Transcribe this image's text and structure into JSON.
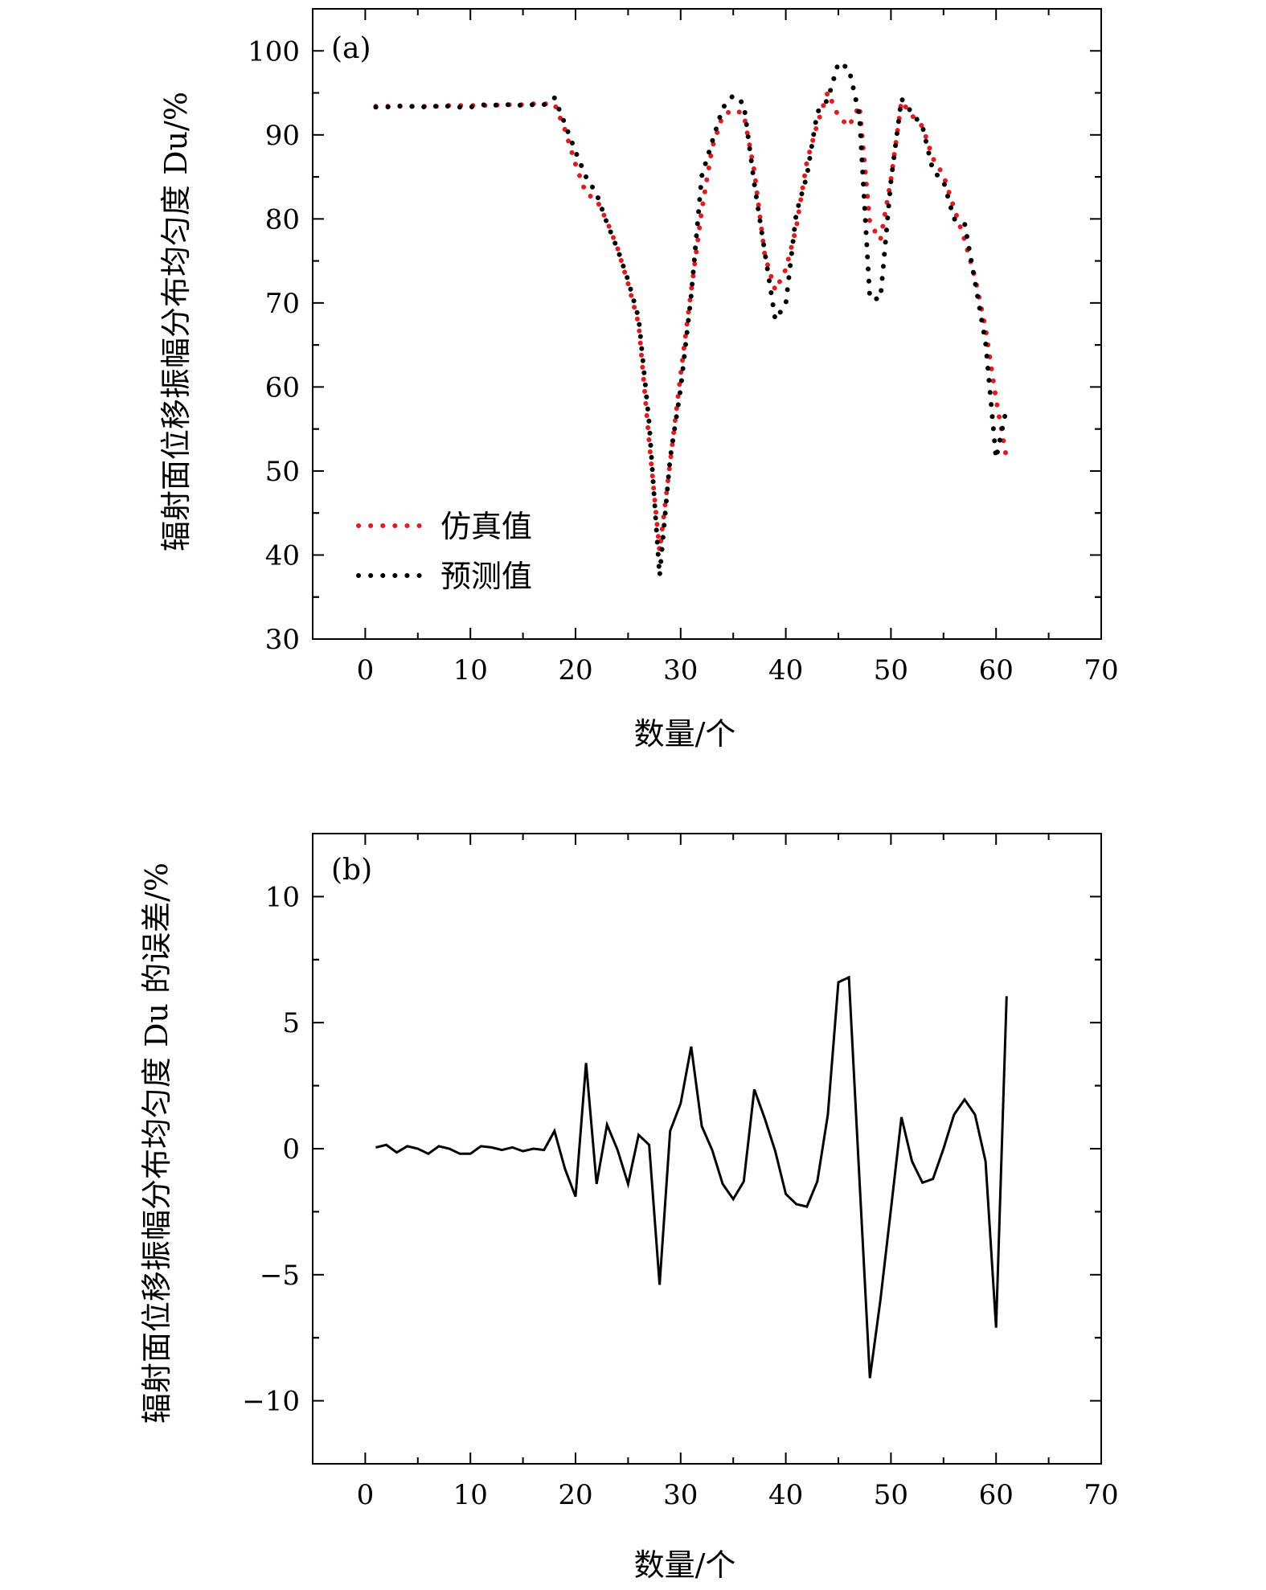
{
  "chart_data": [
    {
      "type": "line",
      "panel_label": "(a)",
      "xlabel": "数量/个",
      "ylabel": "辐射面位移振幅分布均匀度 Du/%",
      "xlim": [
        -5,
        70
      ],
      "ylim": [
        30,
        105
      ],
      "xticks": [
        0,
        10,
        20,
        30,
        40,
        50,
        60,
        70
      ],
      "yticks": [
        30,
        40,
        50,
        60,
        70,
        80,
        90,
        100
      ],
      "tick_labels_x": [
        "0",
        "10",
        "20",
        "30",
        "40",
        "50",
        "60",
        "70"
      ],
      "tick_labels_y": [
        "30",
        "40",
        "50",
        "60",
        "70",
        "80",
        "90",
        "100"
      ],
      "legend_position": "bottom-left",
      "x": [
        1,
        2,
        3,
        4,
        5,
        6,
        7,
        8,
        9,
        10,
        11,
        12,
        13,
        14,
        15,
        16,
        17,
        18,
        19,
        20,
        21,
        22,
        23,
        24,
        25,
        26,
        27,
        28,
        29,
        30,
        31,
        32,
        33,
        34,
        35,
        36,
        37,
        38,
        39,
        40,
        41,
        42,
        43,
        44,
        45,
        46,
        47,
        48,
        49,
        50,
        51,
        52,
        53,
        54,
        55,
        56,
        57,
        58,
        59,
        60,
        61
      ],
      "series": [
        {
          "name": "仿真值",
          "color": "#e41a1c",
          "style": "dotted",
          "values": [
            93.4,
            93.4,
            93.4,
            93.4,
            93.4,
            93.4,
            93.4,
            93.5,
            93.5,
            93.5,
            93.5,
            93.5,
            93.6,
            93.6,
            93.6,
            93.7,
            93.7,
            93.7,
            90.6,
            86.5,
            83.0,
            82.3,
            79.7,
            76.5,
            72.3,
            67.5,
            53.5,
            40.5,
            51.0,
            61.5,
            71.5,
            81.0,
            88.5,
            92.3,
            93.0,
            92.5,
            85.7,
            75.7,
            71.5,
            74.0,
            79.0,
            86.8,
            91.3,
            95.1,
            92.2,
            91.0,
            93.5,
            79.5,
            77.5,
            84.7,
            94.0,
            92.3,
            91.0,
            87.2,
            85.2,
            81.3,
            77.5,
            73.0,
            67.0,
            58.5,
            51.5
          ]
        },
        {
          "name": "预测值",
          "color": "#000000",
          "style": "dotted",
          "values": [
            93.3,
            93.3,
            93.5,
            93.3,
            93.5,
            93.2,
            93.5,
            93.4,
            93.3,
            93.3,
            93.6,
            93.5,
            93.6,
            93.6,
            93.5,
            93.6,
            93.6,
            94.4,
            91.3,
            88.0,
            85.0,
            83.0,
            79.5,
            76.4,
            72.7,
            68.2,
            55.7,
            37.5,
            51.5,
            59.8,
            70.9,
            85.1,
            89.2,
            93.2,
            94.7,
            93.7,
            84.2,
            76.1,
            68.0,
            69.9,
            80.7,
            85.1,
            92.7,
            94.2,
            98.6,
            97.9,
            92.3,
            70.5,
            70.5,
            84.5,
            94.3,
            92.6,
            91.0,
            85.7,
            84.5,
            80.0,
            79.5,
            72.5,
            65.3,
            51.5,
            57.5
          ]
        }
      ]
    },
    {
      "type": "line",
      "panel_label": "(b)",
      "xlabel": "数量/个",
      "ylabel": "辐射面位移振幅分布均匀度 Du 的误差/%",
      "xlim": [
        -5,
        70
      ],
      "ylim": [
        -12.5,
        12.5
      ],
      "xticks": [
        0,
        10,
        20,
        30,
        40,
        50,
        60,
        70
      ],
      "yticks": [
        -10,
        -5,
        0,
        5,
        10
      ],
      "tick_labels_x": [
        "0",
        "10",
        "20",
        "30",
        "40",
        "50",
        "60",
        "70"
      ],
      "tick_labels_y": [
        "−10",
        "−5",
        "0",
        "5",
        "10"
      ],
      "x": [
        1,
        2,
        3,
        4,
        5,
        6,
        7,
        8,
        9,
        10,
        11,
        12,
        13,
        14,
        15,
        16,
        17,
        18,
        19,
        20,
        21,
        22,
        23,
        24,
        25,
        26,
        27,
        28,
        29,
        30,
        31,
        32,
        33,
        34,
        35,
        36,
        37,
        38,
        39,
        40,
        41,
        42,
        43,
        44,
        45,
        46,
        47,
        48,
        49,
        50,
        51,
        52,
        53,
        54,
        55,
        56,
        57,
        58,
        59,
        60,
        61
      ],
      "series": [
        {
          "color": "#000000",
          "style": "solid",
          "values": [
            0.05,
            0.15,
            -0.15,
            0.1,
            0.0,
            -0.2,
            0.1,
            0.0,
            -0.2,
            -0.2,
            0.1,
            0.05,
            -0.05,
            0.05,
            -0.1,
            0.0,
            -0.05,
            0.7,
            -0.8,
            -1.9,
            3.4,
            -1.4,
            0.95,
            -0.05,
            -1.4,
            0.55,
            0.15,
            -5.4,
            0.7,
            1.8,
            4.05,
            0.9,
            -0.05,
            -1.4,
            -2.0,
            -1.3,
            2.35,
            1.2,
            -0.1,
            -1.8,
            -2.2,
            -2.3,
            -1.3,
            1.35,
            6.6,
            6.8,
            -1.2,
            -9.1,
            -6.0,
            -2.4,
            1.25,
            -0.5,
            -1.35,
            -1.2,
            0.0,
            1.35,
            1.95,
            1.35,
            -0.5,
            -7.1,
            6.05
          ]
        }
      ]
    }
  ]
}
